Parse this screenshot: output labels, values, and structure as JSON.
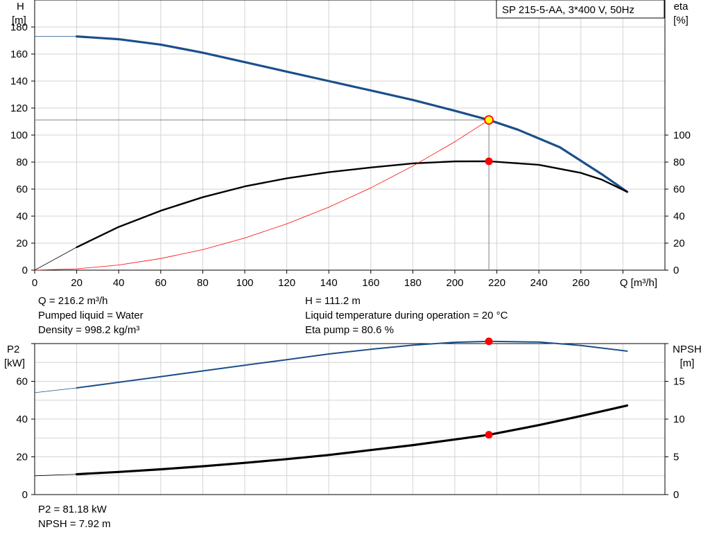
{
  "title_box": "SP 215-5-AA, 3*400 V, 50Hz",
  "colors": {
    "head": "#1b4f8a",
    "eta": "#000000",
    "system": "#ff0000",
    "op_point": "#ff0000",
    "op_point_head_fill": "#ffff00",
    "grid": "#d3d3d3",
    "p2": "#1b4f8a",
    "npsh": "#000000"
  },
  "info": {
    "q": "Q = 216.2 m³/h",
    "liquid": "Pumped liquid = Water",
    "density": "Density = 998.2 kg/m³",
    "h": "H = 111.2 m",
    "temp": "Liquid temperature during operation = 20 °C",
    "eta": "Eta pump = 80.6 %",
    "p2": "P2 = 81.18 kW",
    "npsh": "NPSH = 7.92 m"
  },
  "chart_data": [
    {
      "type": "line",
      "title": "SP 215-5-AA, 3*400 V, 50Hz",
      "xlabel": "Q [m³/h]",
      "ylabel_left": [
        "H",
        "[m]"
      ],
      "ylabel_right": [
        "eta",
        "[%]"
      ],
      "xlim": [
        0,
        300
      ],
      "ylim_left": [
        0,
        200
      ],
      "ylim_right": [
        0,
        200
      ],
      "x_ticks": [
        0,
        20,
        40,
        60,
        80,
        100,
        120,
        140,
        160,
        180,
        200,
        220,
        240,
        260
      ],
      "y_ticks_left": [
        0,
        20,
        40,
        60,
        80,
        100,
        120,
        140,
        160,
        180
      ],
      "y_ticks_right": [
        0,
        20,
        40,
        60,
        80,
        100
      ],
      "grid": true,
      "operating_point": {
        "q": 216.2,
        "h": 111.2,
        "eta": 80.6
      },
      "series": [
        {
          "key": "head",
          "axis": "left",
          "extrapolated": [
            [
              0,
              173
            ],
            [
              20,
              173
            ]
          ],
          "x": [
            20,
            40,
            60,
            80,
            100,
            120,
            140,
            160,
            180,
            200,
            216.2,
            230,
            250,
            270,
            282
          ],
          "y": [
            173,
            171,
            167,
            161,
            154,
            147,
            140,
            133,
            126,
            118,
            111.2,
            104,
            91,
            71,
            58
          ]
        },
        {
          "key": "eta",
          "axis": "right",
          "extrapolated": [
            [
              0,
              0
            ],
            [
              20,
              17
            ]
          ],
          "x": [
            20,
            40,
            60,
            80,
            100,
            120,
            140,
            160,
            180,
            200,
            216.2,
            240,
            260,
            270,
            282
          ],
          "y": [
            17,
            32,
            44,
            54,
            62,
            68,
            72.5,
            76,
            79,
            80.5,
            80.6,
            78,
            72,
            67,
            58
          ]
        },
        {
          "key": "system",
          "axis": "left",
          "x": [
            0,
            20,
            40,
            60,
            80,
            100,
            120,
            140,
            160,
            180,
            200,
            216.2
          ],
          "y": [
            0,
            0.95,
            3.8,
            8.6,
            15.2,
            23.8,
            34.3,
            46.6,
            60.9,
            77.1,
            95.1,
            111.2
          ]
        }
      ]
    },
    {
      "type": "line",
      "xlim": [
        0,
        300
      ],
      "ylabel_left": [
        "P2",
        "[kW]"
      ],
      "ylabel_right": [
        "NPSH",
        "[m]"
      ],
      "ylim_left": [
        0,
        80
      ],
      "ylim_right": [
        0,
        20
      ],
      "y_ticks_left": [
        0,
        20,
        40,
        60
      ],
      "y_ticks_right": [
        0,
        5,
        10,
        15
      ],
      "grid": true,
      "operating_point": {
        "q": 216.2,
        "p2": 81.18,
        "npsh": 7.92
      },
      "series": [
        {
          "key": "p2",
          "axis": "left",
          "extrapolated": [
            [
              0,
              54
            ],
            [
              20,
              56.5
            ]
          ],
          "x": [
            20,
            40,
            60,
            80,
            100,
            120,
            140,
            160,
            180,
            200,
            216.2,
            240,
            260,
            282
          ],
          "y": [
            56.5,
            59.5,
            62.5,
            65.5,
            68.5,
            71.5,
            74.5,
            77,
            79.2,
            80.7,
            81.18,
            80.8,
            79,
            76
          ]
        },
        {
          "key": "npsh",
          "axis": "right",
          "extrapolated": [
            [
              0,
              2.5
            ],
            [
              20,
              2.7
            ]
          ],
          "x": [
            20,
            40,
            60,
            80,
            100,
            120,
            140,
            160,
            180,
            200,
            216.2,
            240,
            260,
            282
          ],
          "y": [
            2.7,
            3.0,
            3.35,
            3.75,
            4.2,
            4.7,
            5.25,
            5.9,
            6.55,
            7.3,
            7.92,
            9.2,
            10.4,
            11.8
          ]
        }
      ]
    }
  ]
}
